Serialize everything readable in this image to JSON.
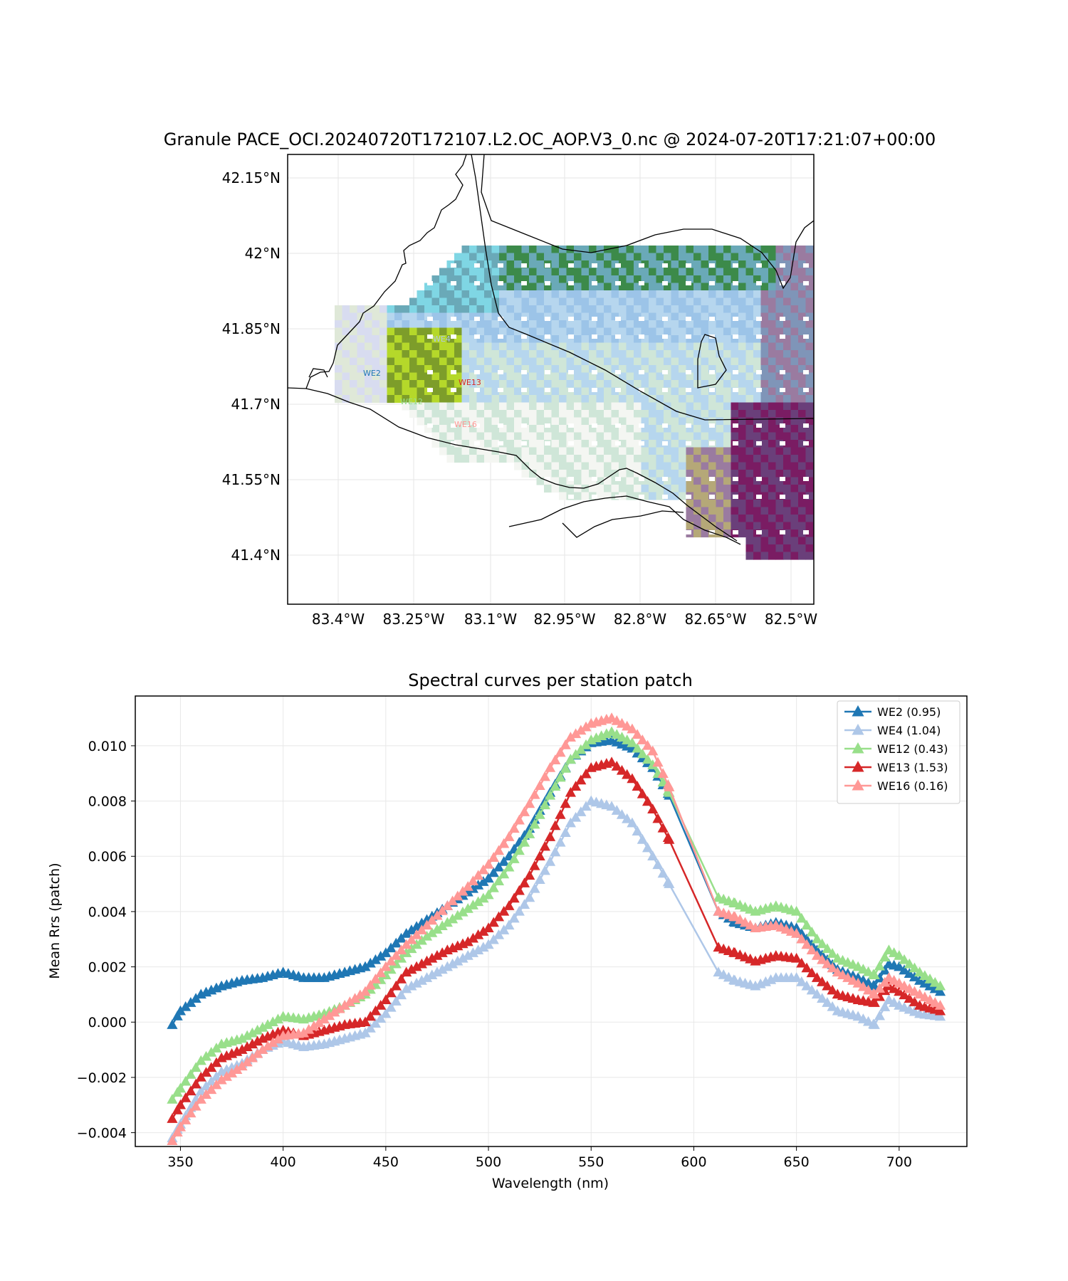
{
  "map": {
    "title": "Granule PACE_OCI.20240720T172107.L2.OC_AOP.V3_0.nc @ 2024-07-20T17:21:07+00:00",
    "lat_ticks": [
      "42.15°N",
      "42°N",
      "41.85°N",
      "41.7°N",
      "41.55°N",
      "41.4°N"
    ],
    "lon_ticks": [
      "83.4°W",
      "83.25°W",
      "83.1°W",
      "82.95°W",
      "82.8°W",
      "82.65°W",
      "82.5°W"
    ],
    "stations": [
      {
        "label": "WE2",
        "color": "#1f77b4"
      },
      {
        "label": "WE4",
        "color": "#aec7e8"
      },
      {
        "label": "WE12",
        "color": "#98df8a"
      },
      {
        "label": "WE13",
        "color": "#d62728"
      },
      {
        "label": "WE16",
        "color": "#ff9896"
      }
    ]
  },
  "chart_data": {
    "type": "line",
    "title": "Spectral curves per station patch",
    "xlabel": "Wavelength (nm)",
    "ylabel": "Mean Rrs (patch)",
    "xlim": [
      328,
      733
    ],
    "ylim": [
      -0.0045,
      0.0118
    ],
    "xticks": [
      "350",
      "400",
      "450",
      "500",
      "550",
      "600",
      "650",
      "700"
    ],
    "yticks": [
      "−0.004",
      "−0.002",
      "0.000",
      "0.002",
      "0.004",
      "0.006",
      "0.008",
      "0.010"
    ],
    "grid": true,
    "legend_position": "top-right",
    "marker": "triangle",
    "series": [
      {
        "name": "WE2 (0.95)",
        "color": "#1f77b4",
        "points": [
          [
            346,
            -0.0001
          ],
          [
            350,
            0.0004
          ],
          [
            360,
            0.001
          ],
          [
            370,
            0.0013
          ],
          [
            380,
            0.0015
          ],
          [
            390,
            0.0016
          ],
          [
            400,
            0.0018
          ],
          [
            410,
            0.0016
          ],
          [
            420,
            0.0016
          ],
          [
            430,
            0.0018
          ],
          [
            440,
            0.002
          ],
          [
            450,
            0.0025
          ],
          [
            460,
            0.0032
          ],
          [
            470,
            0.0037
          ],
          [
            480,
            0.0042
          ],
          [
            490,
            0.0047
          ],
          [
            500,
            0.0052
          ],
          [
            510,
            0.006
          ],
          [
            520,
            0.007
          ],
          [
            530,
            0.0083
          ],
          [
            540,
            0.0095
          ],
          [
            550,
            0.0101
          ],
          [
            560,
            0.0102
          ],
          [
            570,
            0.0099
          ],
          [
            580,
            0.0092
          ],
          [
            588,
            0.0082
          ],
          [
            612,
            0.004
          ],
          [
            620,
            0.0036
          ],
          [
            630,
            0.0034
          ],
          [
            640,
            0.0036
          ],
          [
            650,
            0.0034
          ],
          [
            660,
            0.0026
          ],
          [
            670,
            0.0019
          ],
          [
            680,
            0.0016
          ],
          [
            688,
            0.0013
          ],
          [
            695,
            0.0021
          ],
          [
            700,
            0.002
          ],
          [
            710,
            0.0015
          ],
          [
            720,
            0.0011
          ]
        ]
      },
      {
        "name": "WE4 (1.04)",
        "color": "#aec7e8",
        "points": [
          [
            346,
            -0.0042
          ],
          [
            350,
            -0.0037
          ],
          [
            360,
            -0.0025
          ],
          [
            370,
            -0.0018
          ],
          [
            380,
            -0.0015
          ],
          [
            390,
            -0.001
          ],
          [
            400,
            -0.0007
          ],
          [
            410,
            -0.0009
          ],
          [
            420,
            -0.0008
          ],
          [
            430,
            -0.0006
          ],
          [
            440,
            -0.0004
          ],
          [
            450,
            0.0003
          ],
          [
            460,
            0.0012
          ],
          [
            470,
            0.0016
          ],
          [
            480,
            0.002
          ],
          [
            490,
            0.0024
          ],
          [
            500,
            0.0028
          ],
          [
            510,
            0.0035
          ],
          [
            520,
            0.0045
          ],
          [
            530,
            0.0058
          ],
          [
            540,
            0.0072
          ],
          [
            550,
            0.008
          ],
          [
            560,
            0.0078
          ],
          [
            570,
            0.0072
          ],
          [
            580,
            0.006
          ],
          [
            588,
            0.005
          ],
          [
            612,
            0.0018
          ],
          [
            620,
            0.0015
          ],
          [
            630,
            0.0013
          ],
          [
            640,
            0.0016
          ],
          [
            650,
            0.0016
          ],
          [
            660,
            0.001
          ],
          [
            670,
            0.0004
          ],
          [
            680,
            0.0002
          ],
          [
            688,
            -0.0001
          ],
          [
            695,
            0.0008
          ],
          [
            700,
            0.0006
          ],
          [
            710,
            0.0003
          ],
          [
            720,
            0.0002
          ]
        ]
      },
      {
        "name": "WE12 (0.43)",
        "color": "#98df8a",
        "points": [
          [
            346,
            -0.0028
          ],
          [
            350,
            -0.0024
          ],
          [
            360,
            -0.0014
          ],
          [
            370,
            -0.0008
          ],
          [
            380,
            -0.0006
          ],
          [
            390,
            -0.0002
          ],
          [
            400,
            0.0002
          ],
          [
            410,
            0.0001
          ],
          [
            420,
            0.0003
          ],
          [
            430,
            0.0006
          ],
          [
            440,
            0.001
          ],
          [
            450,
            0.0017
          ],
          [
            460,
            0.0025
          ],
          [
            470,
            0.0031
          ],
          [
            480,
            0.0036
          ],
          [
            490,
            0.0041
          ],
          [
            500,
            0.0046
          ],
          [
            510,
            0.0056
          ],
          [
            520,
            0.0068
          ],
          [
            530,
            0.0082
          ],
          [
            540,
            0.0095
          ],
          [
            550,
            0.0102
          ],
          [
            560,
            0.0105
          ],
          [
            570,
            0.0101
          ],
          [
            580,
            0.0093
          ],
          [
            588,
            0.0083
          ],
          [
            612,
            0.0045
          ],
          [
            620,
            0.0043
          ],
          [
            630,
            0.004
          ],
          [
            640,
            0.0042
          ],
          [
            650,
            0.004
          ],
          [
            660,
            0.003
          ],
          [
            670,
            0.0023
          ],
          [
            680,
            0.002
          ],
          [
            688,
            0.0017
          ],
          [
            695,
            0.0026
          ],
          [
            700,
            0.0024
          ],
          [
            710,
            0.0018
          ],
          [
            720,
            0.0013
          ]
        ]
      },
      {
        "name": "WE13 (1.53)",
        "color": "#d62728",
        "points": [
          [
            346,
            -0.0035
          ],
          [
            350,
            -0.003
          ],
          [
            360,
            -0.002
          ],
          [
            370,
            -0.0013
          ],
          [
            380,
            -0.001
          ],
          [
            390,
            -0.0006
          ],
          [
            400,
            -0.0003
          ],
          [
            410,
            -0.0005
          ],
          [
            420,
            -0.0003
          ],
          [
            430,
            -0.0001
          ],
          [
            440,
            0.0
          ],
          [
            450,
            0.0008
          ],
          [
            460,
            0.0018
          ],
          [
            470,
            0.0022
          ],
          [
            480,
            0.0026
          ],
          [
            490,
            0.0029
          ],
          [
            500,
            0.0034
          ],
          [
            510,
            0.0042
          ],
          [
            520,
            0.0053
          ],
          [
            530,
            0.0067
          ],
          [
            540,
            0.0083
          ],
          [
            550,
            0.0092
          ],
          [
            560,
            0.0094
          ],
          [
            570,
            0.0088
          ],
          [
            580,
            0.0077
          ],
          [
            588,
            0.0066
          ],
          [
            612,
            0.0027
          ],
          [
            620,
            0.0025
          ],
          [
            630,
            0.0022
          ],
          [
            640,
            0.0024
          ],
          [
            650,
            0.0023
          ],
          [
            660,
            0.0016
          ],
          [
            670,
            0.001
          ],
          [
            680,
            0.0008
          ],
          [
            688,
            0.0007
          ],
          [
            695,
            0.0013
          ],
          [
            700,
            0.0011
          ],
          [
            710,
            0.0006
          ],
          [
            720,
            0.0004
          ]
        ]
      },
      {
        "name": "WE16 (0.16)",
        "color": "#ff9896",
        "points": [
          [
            346,
            -0.0043
          ],
          [
            350,
            -0.0038
          ],
          [
            360,
            -0.0028
          ],
          [
            370,
            -0.0021
          ],
          [
            380,
            -0.0016
          ],
          [
            390,
            -0.001
          ],
          [
            400,
            -0.0005
          ],
          [
            410,
            -0.0004
          ],
          [
            420,
            0.0001
          ],
          [
            430,
            0.0006
          ],
          [
            440,
            0.0011
          ],
          [
            450,
            0.002
          ],
          [
            460,
            0.0028
          ],
          [
            470,
            0.0035
          ],
          [
            480,
            0.0042
          ],
          [
            490,
            0.0049
          ],
          [
            500,
            0.0057
          ],
          [
            510,
            0.0067
          ],
          [
            520,
            0.0079
          ],
          [
            530,
            0.0092
          ],
          [
            540,
            0.0103
          ],
          [
            550,
            0.0108
          ],
          [
            560,
            0.011
          ],
          [
            570,
            0.0106
          ],
          [
            580,
            0.0098
          ],
          [
            588,
            0.0085
          ],
          [
            612,
            0.004
          ],
          [
            620,
            0.0038
          ],
          [
            630,
            0.0034
          ],
          [
            640,
            0.0035
          ],
          [
            650,
            0.0032
          ],
          [
            660,
            0.0024
          ],
          [
            670,
            0.0018
          ],
          [
            680,
            0.0014
          ],
          [
            688,
            0.001
          ],
          [
            695,
            0.0016
          ],
          [
            700,
            0.0014
          ],
          [
            710,
            0.001
          ],
          [
            720,
            0.0006
          ]
        ]
      }
    ]
  }
}
